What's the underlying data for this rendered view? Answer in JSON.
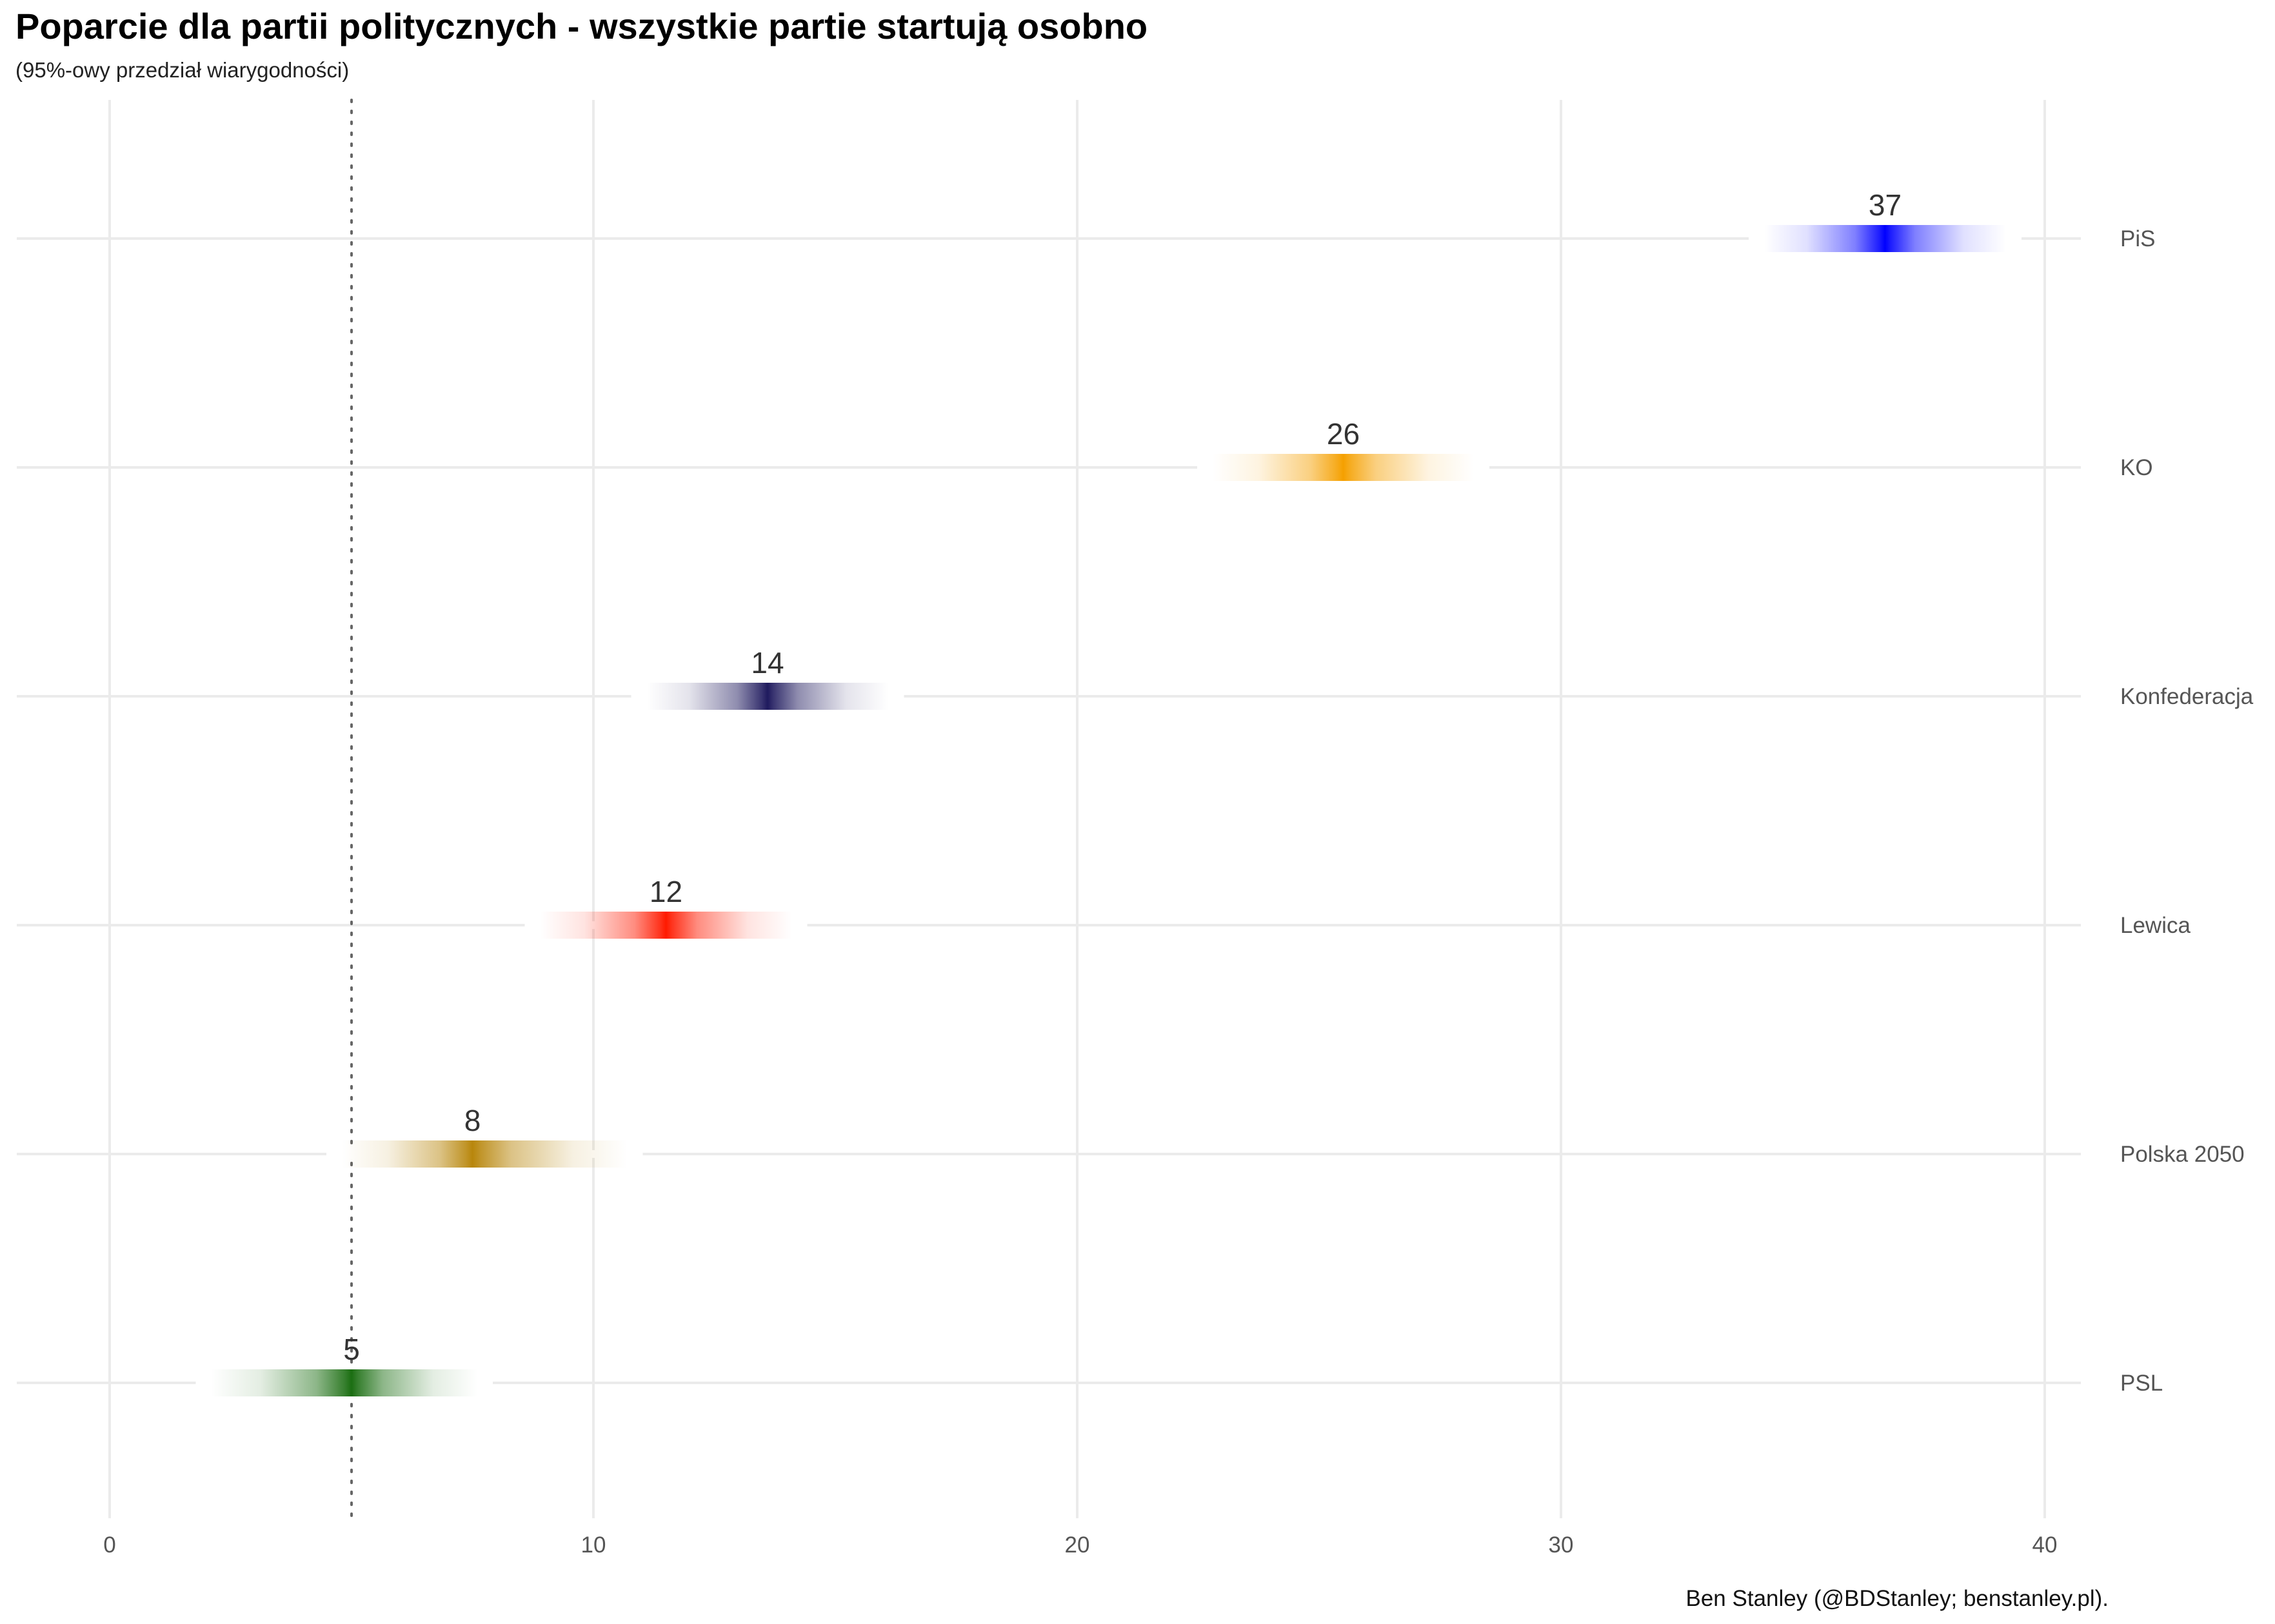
{
  "chart_data": {
    "type": "interval",
    "title": "Poparcie dla partii politycznych - wszystkie partie startują osobno",
    "subtitle": "(95%-owy przedział wiarygodności)",
    "caption": "Ben Stanley (@BDStanley; benstanley.pl).",
    "xlim": [
      0,
      40
    ],
    "x_ticks": [
      0,
      10,
      20,
      30,
      40
    ],
    "threshold": 5,
    "grid": true,
    "series": [
      {
        "party": "PiS",
        "label": "37",
        "estimate": 36.7,
        "low": 34.2,
        "high": 39.2,
        "color": "#0000ff"
      },
      {
        "party": "KO",
        "label": "26",
        "estimate": 25.5,
        "low": 22.8,
        "high": 28.2,
        "color": "#f5a000"
      },
      {
        "party": "Konfederacja",
        "label": "14",
        "estimate": 13.6,
        "low": 11.1,
        "high": 16.1,
        "color": "#1f1a5e"
      },
      {
        "party": "Lewica",
        "label": "12",
        "estimate": 11.5,
        "low": 8.9,
        "high": 14.1,
        "color": "#ff1a00"
      },
      {
        "party": "Polska 2050",
        "label": "8",
        "estimate": 7.5,
        "low": 4.8,
        "high": 10.7,
        "color": "#b8860b"
      },
      {
        "party": "PSL",
        "label": "5",
        "estimate": 5.0,
        "low": 2.1,
        "high": 7.6,
        "color": "#1b6e12"
      }
    ]
  }
}
